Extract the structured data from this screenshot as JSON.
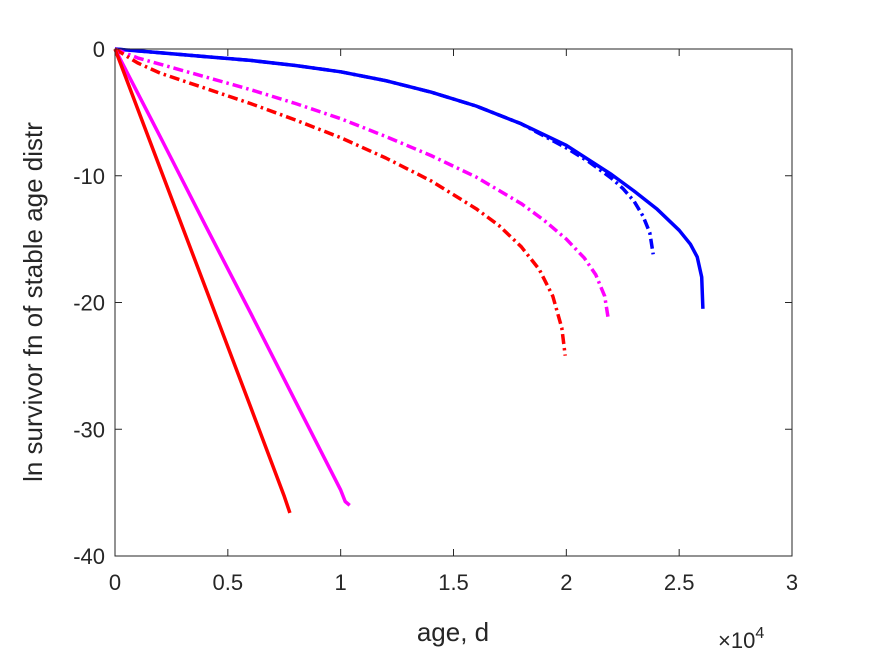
{
  "chart_data": {
    "type": "line",
    "title": "",
    "xlabel": "age, d",
    "ylabel": "ln survivor fn of stable age distr",
    "x_multiplier_label": {
      "base": "×10",
      "exponent": "4"
    },
    "xlim": [
      0,
      30000
    ],
    "ylim": [
      -40,
      0
    ],
    "xticks": [
      0,
      5000,
      10000,
      15000,
      20000,
      25000,
      30000
    ],
    "xtick_labels": [
      "0",
      "0.5",
      "1",
      "1.5",
      "2",
      "2.5",
      "3"
    ],
    "yticks": [
      0,
      -10,
      -20,
      -30,
      -40
    ],
    "ytick_labels": [
      "0",
      "-10",
      "-20",
      "-30",
      "-40"
    ],
    "grid": false,
    "series": [
      {
        "color": "#0000ff",
        "style": "solid",
        "x": [
          0,
          2000,
          4000,
          6000,
          8000,
          10000,
          12000,
          14000,
          16000,
          18000,
          20000,
          22000,
          23000,
          24000,
          25000,
          25500,
          25800,
          26000,
          26050
        ],
        "y": [
          0,
          -0.3,
          -0.6,
          -0.9,
          -1.3,
          -1.8,
          -2.5,
          -3.4,
          -4.5,
          -5.9,
          -7.6,
          -9.9,
          -11.2,
          -12.6,
          -14.3,
          -15.4,
          -16.4,
          -18.0,
          -20.5
        ]
      },
      {
        "color": "#0000ff",
        "style": "dashdot",
        "x": [
          0,
          2000,
          4000,
          6000,
          8000,
          10000,
          12000,
          14000,
          16000,
          18000,
          20000,
          21000,
          22000,
          22500,
          23000,
          23400,
          23700,
          23850
        ],
        "y": [
          0,
          -0.3,
          -0.6,
          -0.9,
          -1.3,
          -1.8,
          -2.5,
          -3.4,
          -4.5,
          -5.9,
          -7.8,
          -8.9,
          -10.2,
          -11.0,
          -12.0,
          -13.2,
          -14.5,
          -16.2
        ]
      },
      {
        "color": "#ff00ff",
        "style": "dashdot",
        "x": [
          0,
          1000,
          2000,
          4000,
          6000,
          8000,
          10000,
          12000,
          14000,
          16000,
          18000,
          19000,
          20000,
          20800,
          21300,
          21700,
          21850
        ],
        "y": [
          0,
          -0.7,
          -1.2,
          -2.2,
          -3.2,
          -4.3,
          -5.5,
          -6.9,
          -8.4,
          -10.1,
          -12.2,
          -13.5,
          -15.0,
          -16.5,
          -17.8,
          -19.5,
          -21.2
        ]
      },
      {
        "color": "#ff0000",
        "style": "dashdot",
        "x": [
          0,
          1000,
          2000,
          4000,
          6000,
          8000,
          10000,
          12000,
          14000,
          16000,
          17000,
          18000,
          18800,
          19400,
          19800,
          19950
        ],
        "y": [
          0,
          -1.1,
          -1.9,
          -3.1,
          -4.3,
          -5.6,
          -7.0,
          -8.6,
          -10.4,
          -12.6,
          -13.9,
          -15.6,
          -17.4,
          -19.5,
          -22.0,
          -24.2
        ]
      },
      {
        "color": "#ff00ff",
        "style": "solid",
        "x": [
          0,
          2000,
          4000,
          6000,
          8000,
          10000,
          10200,
          10400
        ],
        "y": [
          0,
          -6.9,
          -13.9,
          -20.8,
          -27.8,
          -34.8,
          -35.7,
          -36.0
        ]
      },
      {
        "color": "#ff0000",
        "style": "solid",
        "x": [
          0,
          2000,
          4000,
          6000,
          7500,
          7750
        ],
        "y": [
          0,
          -9.4,
          -18.8,
          -28.2,
          -35.3,
          -36.6
        ]
      }
    ]
  }
}
